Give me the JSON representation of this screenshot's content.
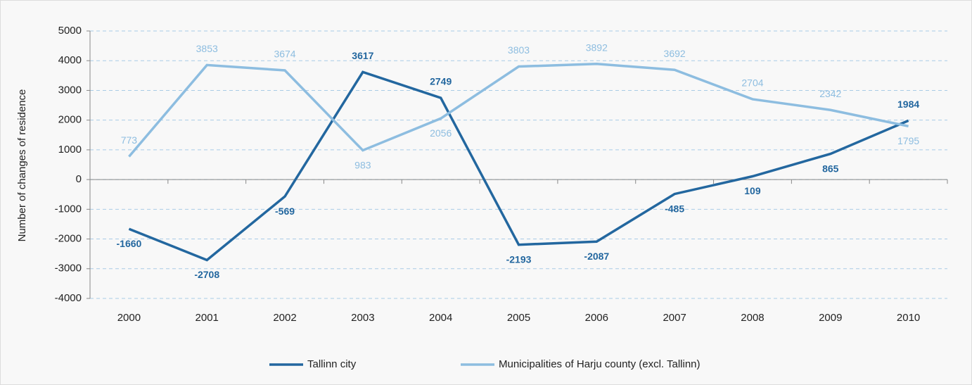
{
  "chart_data": {
    "type": "line",
    "y_label": "Number of changes of residence",
    "categories": [
      "2000",
      "2001",
      "2002",
      "2003",
      "2004",
      "2005",
      "2006",
      "2007",
      "2008",
      "2009",
      "2010"
    ],
    "series": [
      {
        "name": "Tallinn city",
        "color": "#23679f",
        "values": [
          -1660,
          -2708,
          -569,
          3617,
          2749,
          -2193,
          -2087,
          -485,
          109,
          865,
          1984
        ]
      },
      {
        "name": "Municipalities of Harju county (excl. Tallinn)",
        "color": "#8dbde0",
        "values": [
          773,
          3853,
          3674,
          983,
          2056,
          3803,
          3892,
          3692,
          2704,
          2342,
          1795
        ]
      }
    ],
    "ylim": [
      -4000,
      5000
    ],
    "yticks": [
      -4000,
      -3000,
      -2000,
      -1000,
      0,
      1000,
      2000,
      3000,
      4000,
      5000
    ],
    "grid": true,
    "legend": "bottom"
  }
}
